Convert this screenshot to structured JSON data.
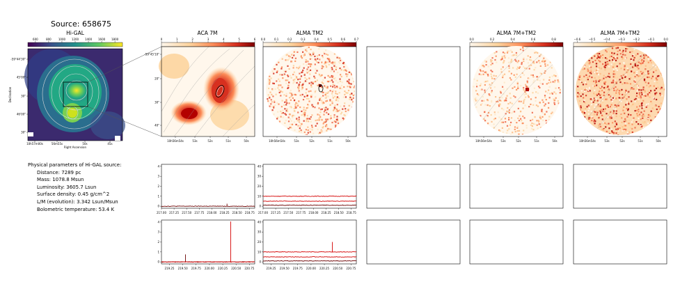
{
  "title": "Source: 658675",
  "panels": {
    "higal": "Hi-GAL",
    "aca": "ACA 7M",
    "tm2": "ALMA TM2",
    "comb1": "ALMA 7M+TM2",
    "comb2": "ALMA 7M+TM2"
  },
  "colorbars": {
    "higal": [
      "600",
      "800",
      "1000",
      "1200",
      "1400",
      "1600",
      "1800"
    ],
    "aca": [
      "0",
      "1",
      "2",
      "3",
      "4",
      "5",
      "6"
    ],
    "tm2": [
      "0.0",
      "0.1",
      "0.2",
      "0.3",
      "0.4",
      "0.5",
      "0.6",
      "0.7"
    ],
    "comb1": [
      "0.0",
      "0.2",
      "0.4",
      "0.6",
      "0.8"
    ],
    "comb2": [
      "−0.6",
      "−0.5",
      "−0.4",
      "−0.3",
      "−0.2",
      "−0.1",
      "0.0"
    ]
  },
  "axes": {
    "higal_y": [
      "-59°44'30\"",
      "45'00\"",
      "30\"",
      "46'00\"",
      "30\""
    ],
    "higal_x": [
      "10h57m00s",
      "56m55s",
      "50s",
      "45s"
    ],
    "higal_xlabel": "Right Ascension",
    "higal_ylabel": "Declination",
    "aca_y": [
      "-59°45'10\"",
      "20\"",
      "30\"",
      "40\""
    ],
    "aca_x": [
      "10h56m54s",
      "53s",
      "52s",
      "51s",
      "50s"
    ],
    "tm2_x": [
      "10h56m54s",
      "53s",
      "52s",
      "51s",
      "50s"
    ],
    "comb1_x": [
      "10h56m54s",
      "53s",
      "52s",
      "51s",
      "50s"
    ],
    "comb2_x": [
      "10h56m54s",
      "53s",
      "52s",
      "51s",
      "50s"
    ]
  },
  "params": {
    "heading": "Physical parameters of Hi-GAL source:",
    "lines": [
      "Distance: 7289 pc",
      "Mass: 1078.8 Msun",
      "Luminosity: 3605.7 Lsun",
      "Surface density: 0.45 g/cm^2",
      "L/M (evolution): 3.342 Lsun/Msun",
      "Bolometric temperature: 53.4 K"
    ]
  },
  "chart_data": [
    {
      "type": "line",
      "panel": "ACA 7M spectrum, spw 1",
      "x_ticks": [
        "217.00",
        "217.25",
        "217.50",
        "217.75",
        "218.00",
        "218.25",
        "218.50",
        "218.75"
      ],
      "y_ticks": [
        "0",
        "1",
        "2",
        "3",
        "4"
      ],
      "xlim": [
        217.0,
        218.85
      ],
      "ylim": [
        -0.2,
        4.2
      ],
      "series": [
        {
          "baseline": 0.0,
          "color": "#6b0000",
          "spikes": [
            [
              218.3,
              0.25
            ]
          ]
        }
      ]
    },
    {
      "type": "line",
      "panel": "ALMA TM2 spectrum, spw 1",
      "x_ticks": [
        "217.00",
        "217.25",
        "217.50",
        "217.75",
        "218.00",
        "218.25",
        "218.50",
        "218.75"
      ],
      "y_ticks": [
        "0",
        "10",
        "20",
        "30",
        "40"
      ],
      "xlim": [
        217.0,
        218.85
      ],
      "ylim": [
        -2,
        42
      ],
      "series": [
        {
          "baseline": 10,
          "color": "#d40000",
          "spikes": []
        },
        {
          "baseline": 5,
          "color": "#d40000",
          "spikes": []
        },
        {
          "baseline": 1,
          "color": "#6b0000",
          "spikes": []
        }
      ]
    },
    {
      "type": "line",
      "panel": "ACA 7M spectrum, spw 2",
      "x_ticks": [
        "219.25",
        "219.50",
        "219.75",
        "220.00",
        "220.25",
        "220.50",
        "220.75"
      ],
      "y_ticks": [
        "0",
        "1",
        "2",
        "3",
        "4"
      ],
      "xlim": [
        219.1,
        220.85
      ],
      "ylim": [
        -0.2,
        4.2
      ],
      "series": [
        {
          "baseline": 0.0,
          "color": "#6b0000",
          "spikes": [
            [
              219.55,
              0.75
            ]
          ]
        },
        {
          "baseline": 0.0,
          "color": "#d40000",
          "spikes": [
            [
              220.4,
              4.05
            ]
          ]
        }
      ]
    },
    {
      "type": "line",
      "panel": "ALMA TM2 spectrum, spw 2",
      "x_ticks": [
        "219.25",
        "219.50",
        "219.75",
        "220.00",
        "220.25",
        "220.50",
        "220.75"
      ],
      "y_ticks": [
        "0",
        "10",
        "20",
        "30",
        "40"
      ],
      "xlim": [
        219.1,
        220.85
      ],
      "ylim": [
        -2,
        42
      ],
      "series": [
        {
          "baseline": 10,
          "color": "#d40000",
          "spikes": [
            [
              220.4,
              20
            ]
          ]
        },
        {
          "baseline": 5,
          "color": "#d40000",
          "spikes": []
        },
        {
          "baseline": 1,
          "color": "#6b0000",
          "spikes": []
        }
      ]
    }
  ]
}
